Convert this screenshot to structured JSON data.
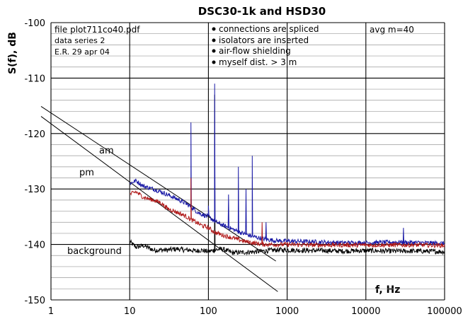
{
  "chart_data": {
    "type": "line",
    "title": "DSC30-1k and HSD30",
    "xlabel": "f, Hz",
    "ylabel": "S(f), dB",
    "x_scale": "log",
    "xlim": [
      1,
      100000
    ],
    "ylim": [
      -150,
      -100
    ],
    "x_ticks": [
      1,
      10,
      100,
      1000,
      10000,
      100000
    ],
    "x_tick_labels": [
      "1",
      "10",
      "100",
      "1000",
      "10000",
      "100000"
    ],
    "y_ticks": [
      -150,
      -140,
      -130,
      -120,
      -110,
      -100
    ],
    "y_tick_labels": [
      "-150",
      "-140",
      "-130",
      "-120",
      "-110",
      "-100"
    ],
    "y_minor_step": 2,
    "grid": true,
    "annotations": {
      "file_block": [
        "file plot711co40.pdf",
        "data series 2",
        "E.R. 29 apr 04"
      ],
      "bullets": [
        "connections are spliced",
        "isolators are inserted",
        "air-flow shielding",
        "myself dist. > 3 m"
      ],
      "avg": "avg m=40"
    },
    "line_labels": {
      "am": "am",
      "pm": "pm",
      "background": "background"
    },
    "colors": {
      "am": "#1a1aa6",
      "pm": "#b01818",
      "background": "#000000",
      "grid": "#000000"
    },
    "series": [
      {
        "key": "am",
        "x": [
          10,
          12,
          15,
          20,
          25,
          30,
          40,
          50,
          60,
          70,
          80,
          100,
          120,
          150,
          200,
          250,
          300,
          400,
          500,
          700,
          1000,
          2000,
          3000,
          5000,
          10000,
          20000,
          30000,
          50000,
          100000
        ],
        "y": [
          -129,
          -128.5,
          -129.5,
          -130,
          -130.5,
          -131,
          -131.8,
          -132.5,
          -133.2,
          -134,
          -134.5,
          -135,
          -135.8,
          -136.5,
          -137.2,
          -137.8,
          -138.2,
          -138.7,
          -139,
          -139.3,
          -139.4,
          -139.5,
          -139.6,
          -139.7,
          -139.7,
          -139.6,
          -139.6,
          -139.7,
          -139.8
        ]
      },
      {
        "key": "pm",
        "x": [
          10,
          12,
          15,
          20,
          25,
          30,
          40,
          50,
          60,
          70,
          80,
          100,
          120,
          150,
          200,
          250,
          300,
          400,
          500,
          700,
          1000,
          2000,
          3000,
          5000,
          10000,
          20000,
          30000,
          50000,
          100000
        ],
        "y": [
          -131,
          -130.5,
          -131.5,
          -132,
          -132.5,
          -133.5,
          -134.2,
          -134.8,
          -135.5,
          -136,
          -136.5,
          -137,
          -137.8,
          -138.3,
          -138.8,
          -139.2,
          -139.5,
          -139.8,
          -140,
          -140,
          -140,
          -140.1,
          -140.1,
          -140.1,
          -140.1,
          -140.1,
          -140.1,
          -140.1,
          -140.2
        ]
      },
      {
        "key": "background",
        "x": [
          10,
          12,
          15,
          20,
          30,
          40,
          50,
          60,
          70,
          80,
          100,
          120,
          150,
          200,
          300,
          500,
          700,
          1000,
          2000,
          3000,
          5000,
          10000,
          20000,
          30000,
          50000,
          100000
        ],
        "y": [
          -139.5,
          -140.5,
          -140.2,
          -141,
          -141,
          -140.8,
          -141,
          -141,
          -141.2,
          -141,
          -141.3,
          -141,
          -140.8,
          -141.5,
          -141.4,
          -141.2,
          -141,
          -141,
          -141.1,
          -141.1,
          -141.2,
          -141.1,
          -141.2,
          -141.2,
          -141.2,
          -141.3
        ]
      }
    ],
    "peaks": [
      {
        "series": "am",
        "x": 60,
        "y": -118
      },
      {
        "series": "pm",
        "x": 60,
        "y": -128
      },
      {
        "series": "am",
        "x": 120,
        "y": -111
      },
      {
        "series": "background",
        "x": 120,
        "y": -113
      },
      {
        "series": "am",
        "x": 100,
        "y": -133
      },
      {
        "series": "am",
        "x": 180,
        "y": -131
      },
      {
        "series": "am",
        "x": 240,
        "y": -126
      },
      {
        "series": "am",
        "x": 300,
        "y": -130
      },
      {
        "series": "am",
        "x": 360,
        "y": -124
      },
      {
        "series": "pm",
        "x": 480,
        "y": -136
      },
      {
        "series": "am",
        "x": 540,
        "y": -136
      },
      {
        "series": "am",
        "x": 30000,
        "y": -137
      }
    ],
    "reference_lines": [
      {
        "key": "upper",
        "x": [
          1,
          720
        ],
        "y": [
          -116,
          -143
        ]
      },
      {
        "key": "lower",
        "x": [
          1,
          760
        ],
        "y": [
          -117.8,
          -148.5
        ]
      }
    ]
  }
}
